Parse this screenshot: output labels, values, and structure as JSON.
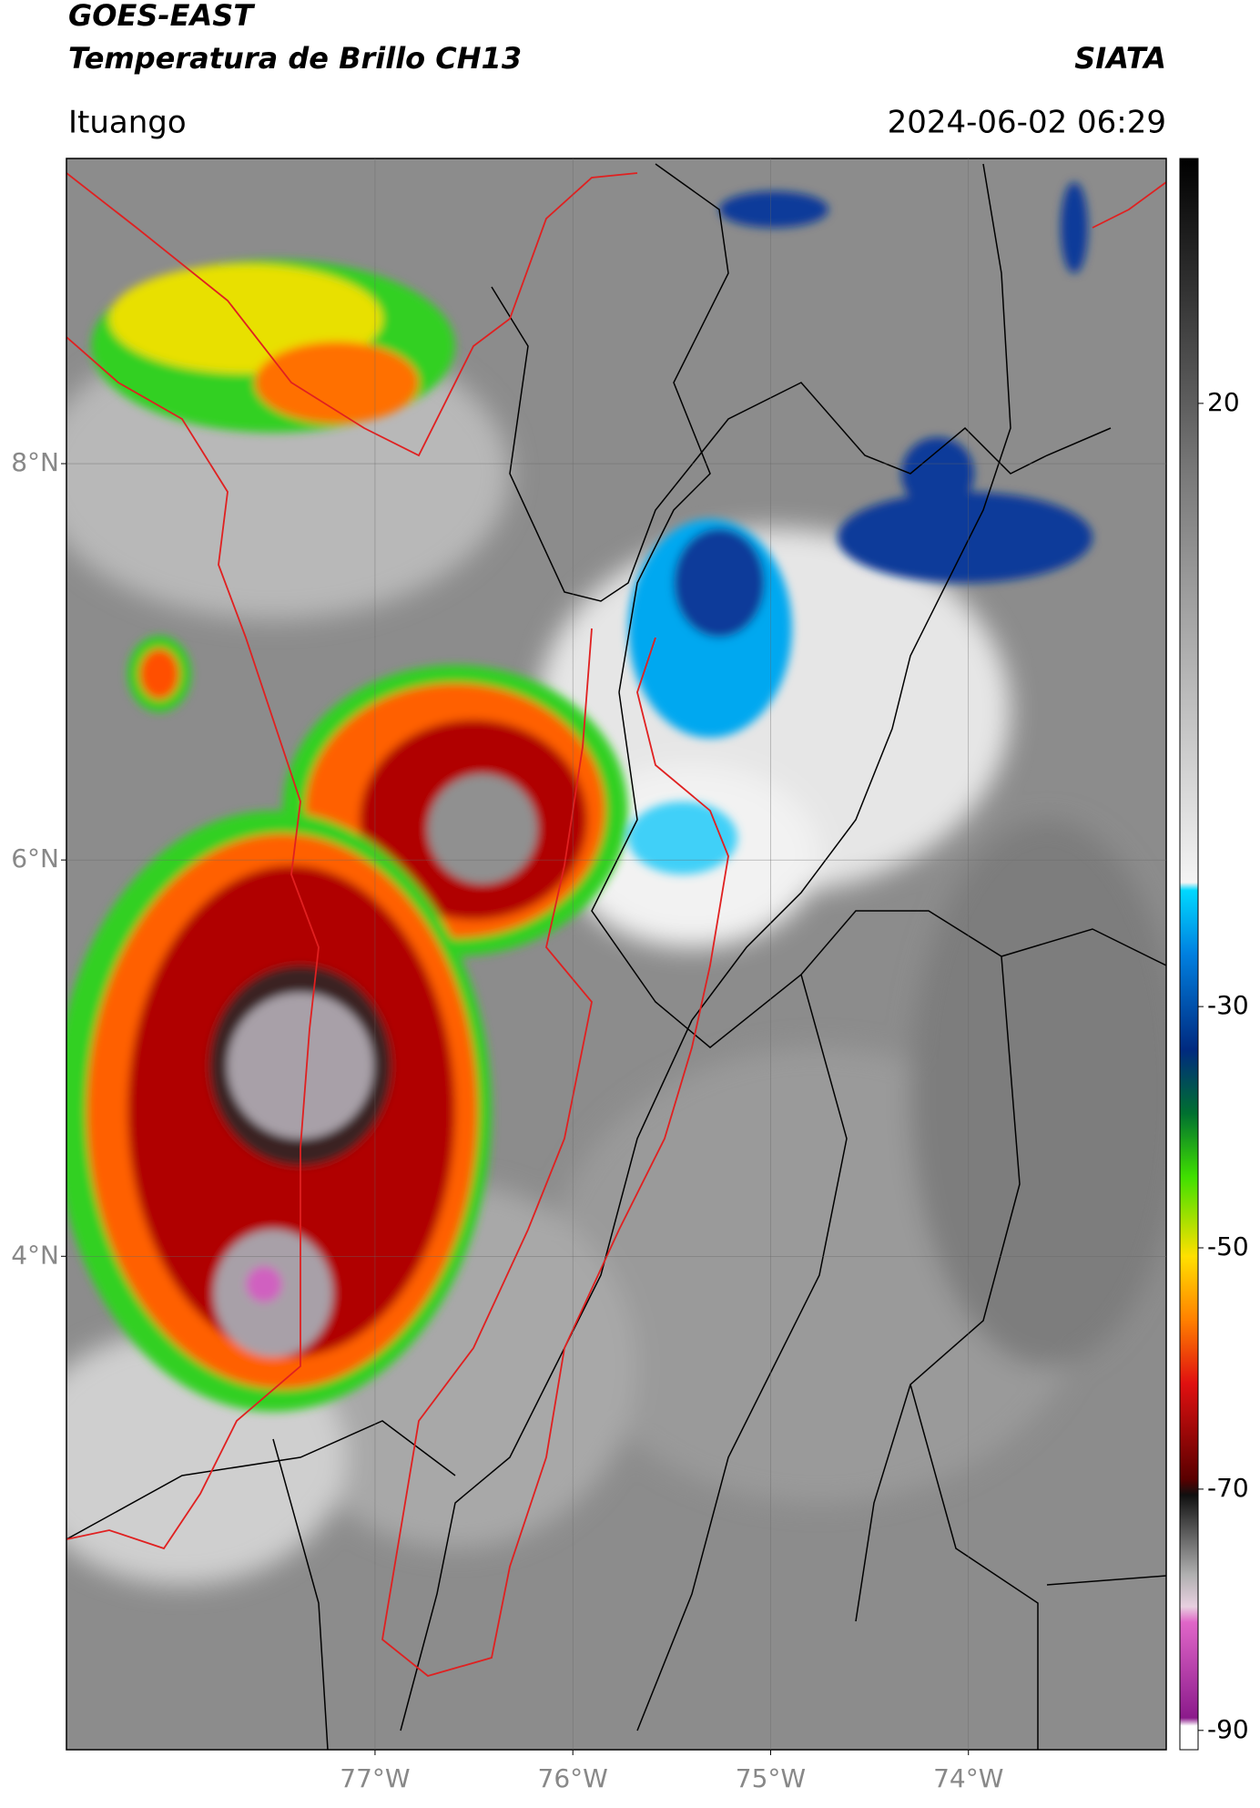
{
  "chart_data": {
    "type": "map",
    "title": "GOES-EAST",
    "subtitle": "Temperatura de Brillo CH13",
    "source": "SIATA",
    "location": "Ituango",
    "date": "2024-06-02 06:29",
    "xlim": [
      -78.56,
      -73.0
    ],
    "ylim": [
      1.51,
      9.54
    ],
    "xticks": [
      {
        "value": -77,
        "label": "77°W"
      },
      {
        "value": -76,
        "label": "76°W"
      },
      {
        "value": -75,
        "label": "75°W"
      },
      {
        "value": -74,
        "label": "74°W"
      }
    ],
    "yticks": [
      {
        "value": 8,
        "label": "8°N"
      },
      {
        "value": 6,
        "label": "6°N"
      },
      {
        "value": 4,
        "label": "4°N"
      }
    ],
    "grid": true,
    "clim": [
      -91.6,
      40.3
    ],
    "cticks": [
      20,
      -30,
      -50,
      -70,
      -90
    ]
  }
}
